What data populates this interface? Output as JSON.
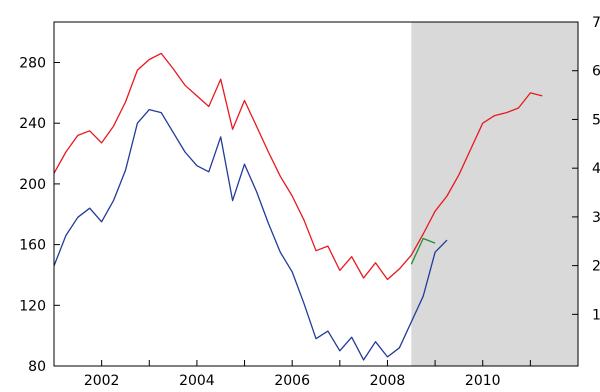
{
  "chart_data": {
    "type": "line",
    "title": "",
    "xlabel": "",
    "ylabel_left": "",
    "ylabel_right": "",
    "x_ticks": [
      "2002",
      "2004",
      "2006",
      "2008",
      "2010"
    ],
    "x_tick_values": [
      2002.0,
      2004.0,
      2006.0,
      2008.0,
      2010.0
    ],
    "xlim": [
      2001.0,
      2012.0
    ],
    "y_left_ticks": [
      "80",
      "120",
      "160",
      "200",
      "240",
      "280"
    ],
    "y_left_tick_values": [
      80,
      120,
      160,
      200,
      240,
      280
    ],
    "ylim_left": [
      80,
      306.7
    ],
    "y_right_ticks": [
      "1",
      "2",
      "3",
      "4",
      "5",
      "6",
      "7"
    ],
    "y_right_tick_values": [
      1,
      2,
      3,
      4,
      5,
      6,
      7
    ],
    "ylim_right": [
      -0.06,
      7.0
    ],
    "grid": false,
    "shaded_region": {
      "x_start": 2008.5,
      "x_end": 2012.0,
      "color": "#d9d9d9"
    },
    "series": [
      {
        "axis": "left",
        "color": "#e8191f",
        "x": [
          2001.0,
          2001.25,
          2001.5,
          2001.75,
          2002.0,
          2002.25,
          2002.5,
          2002.75,
          2003.0,
          2003.25,
          2003.5,
          2003.75,
          2004.0,
          2004.25,
          2004.5,
          2004.75,
          2005.0,
          2005.25,
          2005.5,
          2005.75,
          2006.0,
          2006.25,
          2006.5,
          2006.75,
          2007.0,
          2007.25,
          2007.5,
          2007.75,
          2008.0,
          2008.25,
          2008.5,
          2008.75,
          2009.0,
          2009.25,
          2009.5,
          2009.75,
          2010.0,
          2010.25,
          2010.5,
          2010.75,
          2011.0,
          2011.25,
          2011.5,
          2011.75
        ],
        "values": [
          207,
          221,
          232,
          235,
          227,
          238,
          254,
          275,
          282,
          286,
          276,
          265,
          258,
          251,
          269,
          236,
          255,
          238,
          221,
          205,
          192,
          176,
          156,
          159,
          143,
          152,
          138,
          148,
          137,
          144,
          153,
          167,
          182,
          192,
          206,
          223,
          240,
          245,
          247,
          250,
          260,
          258,
          null,
          null
        ]
      },
      {
        "axis": "left",
        "color": "#233a9a",
        "x": [
          2001.0,
          2001.25,
          2001.5,
          2001.75,
          2002.0,
          2002.25,
          2002.5,
          2002.75,
          2003.0,
          2003.25,
          2003.5,
          2003.75,
          2004.0,
          2004.25,
          2004.5,
          2004.75,
          2005.0,
          2005.25,
          2005.5,
          2005.75,
          2006.0,
          2006.25,
          2006.5,
          2006.75,
          2007.0,
          2007.25,
          2007.5,
          2007.75,
          2008.0,
          2008.25,
          2008.5,
          2008.75,
          2009.0,
          2009.25,
          2009.5,
          2009.75
        ],
        "values": [
          146,
          166,
          178,
          184,
          175,
          189,
          209,
          240,
          249,
          247,
          234,
          221,
          212,
          208,
          231,
          189,
          213,
          195,
          174,
          155,
          142,
          121,
          98,
          103,
          90,
          99,
          84,
          96,
          86,
          92,
          109,
          126,
          155,
          163,
          null,
          null
        ]
      },
      {
        "axis": "left",
        "color": "#1f8f3a",
        "x": [
          2008.5,
          2008.75,
          2009.0
        ],
        "values": [
          147,
          164,
          161
        ]
      }
    ]
  }
}
